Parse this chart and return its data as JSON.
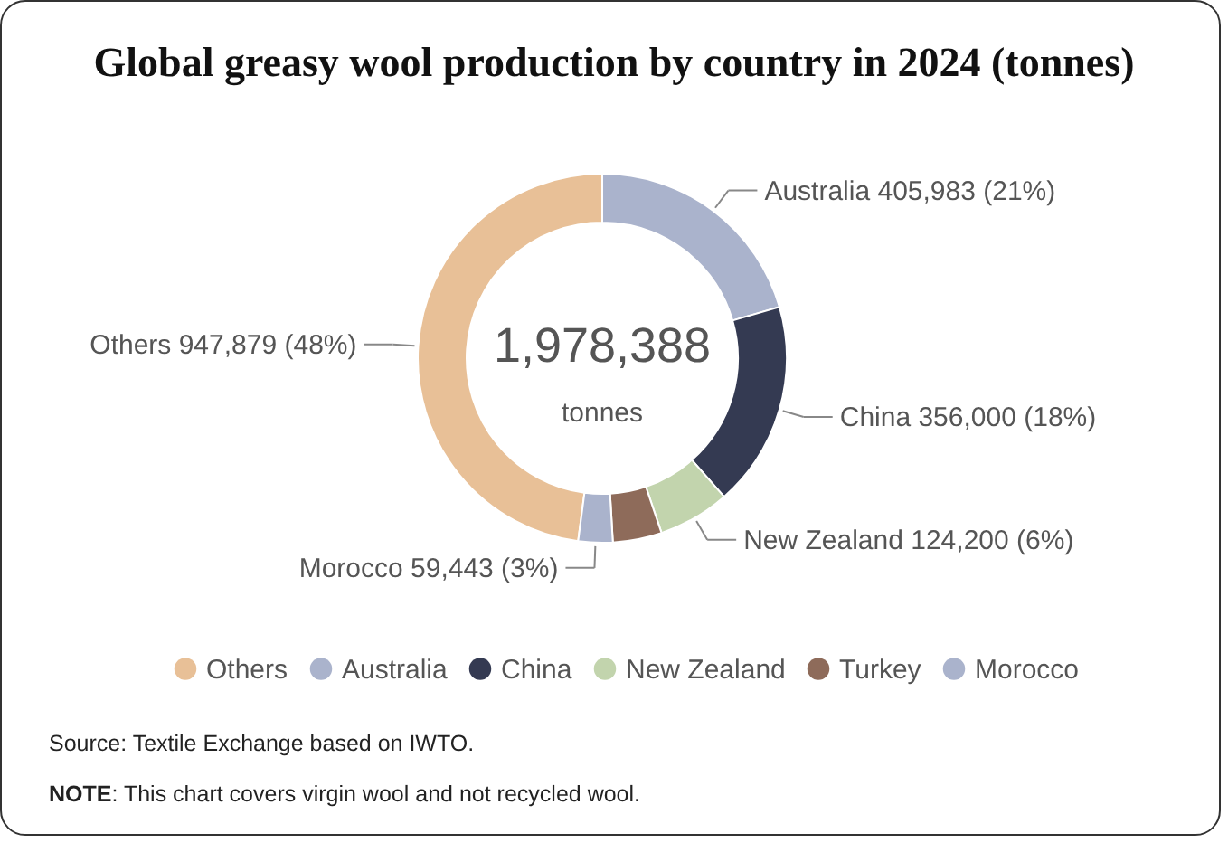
{
  "chart_data": {
    "type": "donut",
    "title": "Global greasy wool production by country in 2024 (tonnes)",
    "categories": [
      "Others",
      "Australia",
      "China",
      "New Zealand",
      "Turkey",
      "Morocco"
    ],
    "values": [
      947879,
      405983,
      356000,
      124200,
      84883,
      59443
    ],
    "colors": [
      "#e8c097",
      "#aab3cc",
      "#343a52",
      "#c2d4ad",
      "#8e6b5a",
      "#aab3cc"
    ],
    "value_labels": [
      "Others 947,879 (48%)",
      "Australia 405,983 (21%)",
      "China 356,000 (18%)",
      "New Zealand 124,200 (6%)",
      null,
      "Morocco 59,443 (3%)"
    ],
    "legend": "bottom",
    "annotations": [
      "1,978,388",
      "tonnes",
      "Source: Textile Exchange based on IWTO.",
      "NOTE: This chart covers virgin wool and not recycled wool."
    ]
  }
}
